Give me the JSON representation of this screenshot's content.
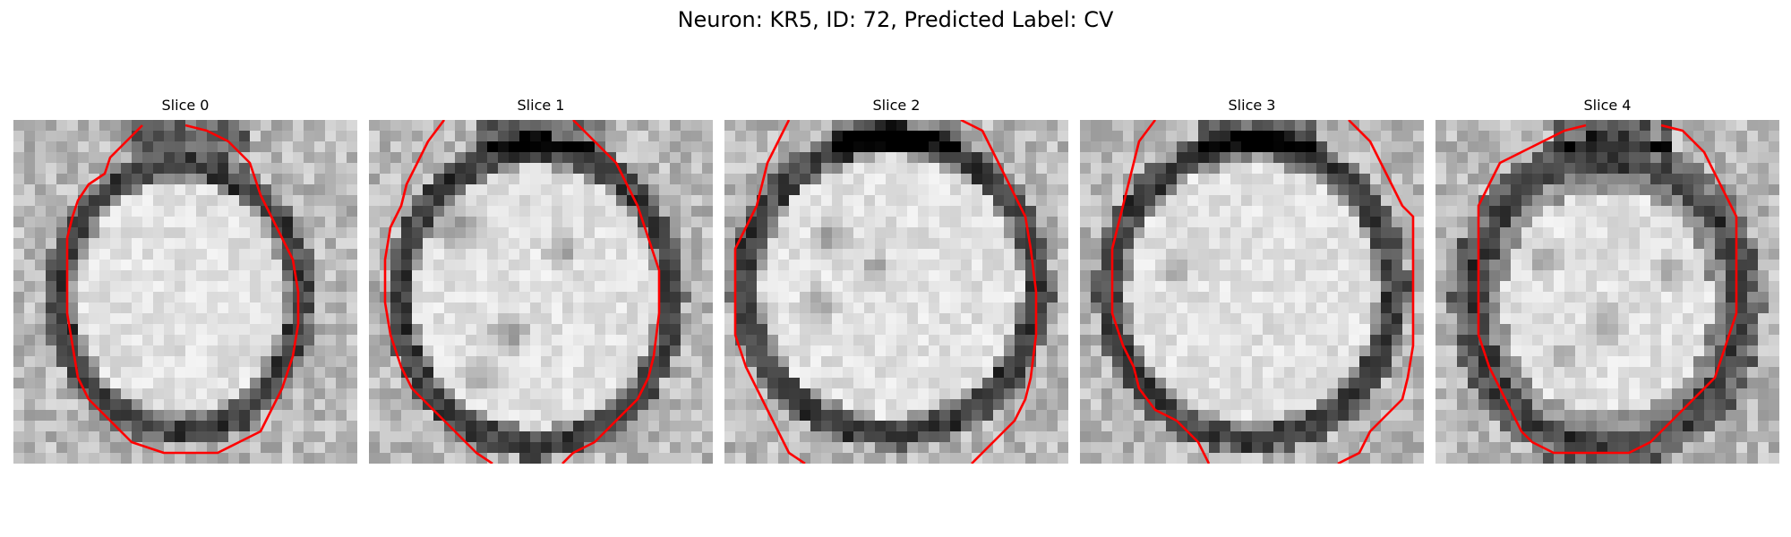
{
  "figure": {
    "title": "Neuron: KR5, ID: 72, Predicted Label: CV",
    "overlay_color": "#ff0000",
    "panels": [
      {
        "title": "Slice 0"
      },
      {
        "title": "Slice 1"
      },
      {
        "title": "Slice 2"
      },
      {
        "title": "Slice 3"
      },
      {
        "title": "Slice 4"
      }
    ]
  }
}
